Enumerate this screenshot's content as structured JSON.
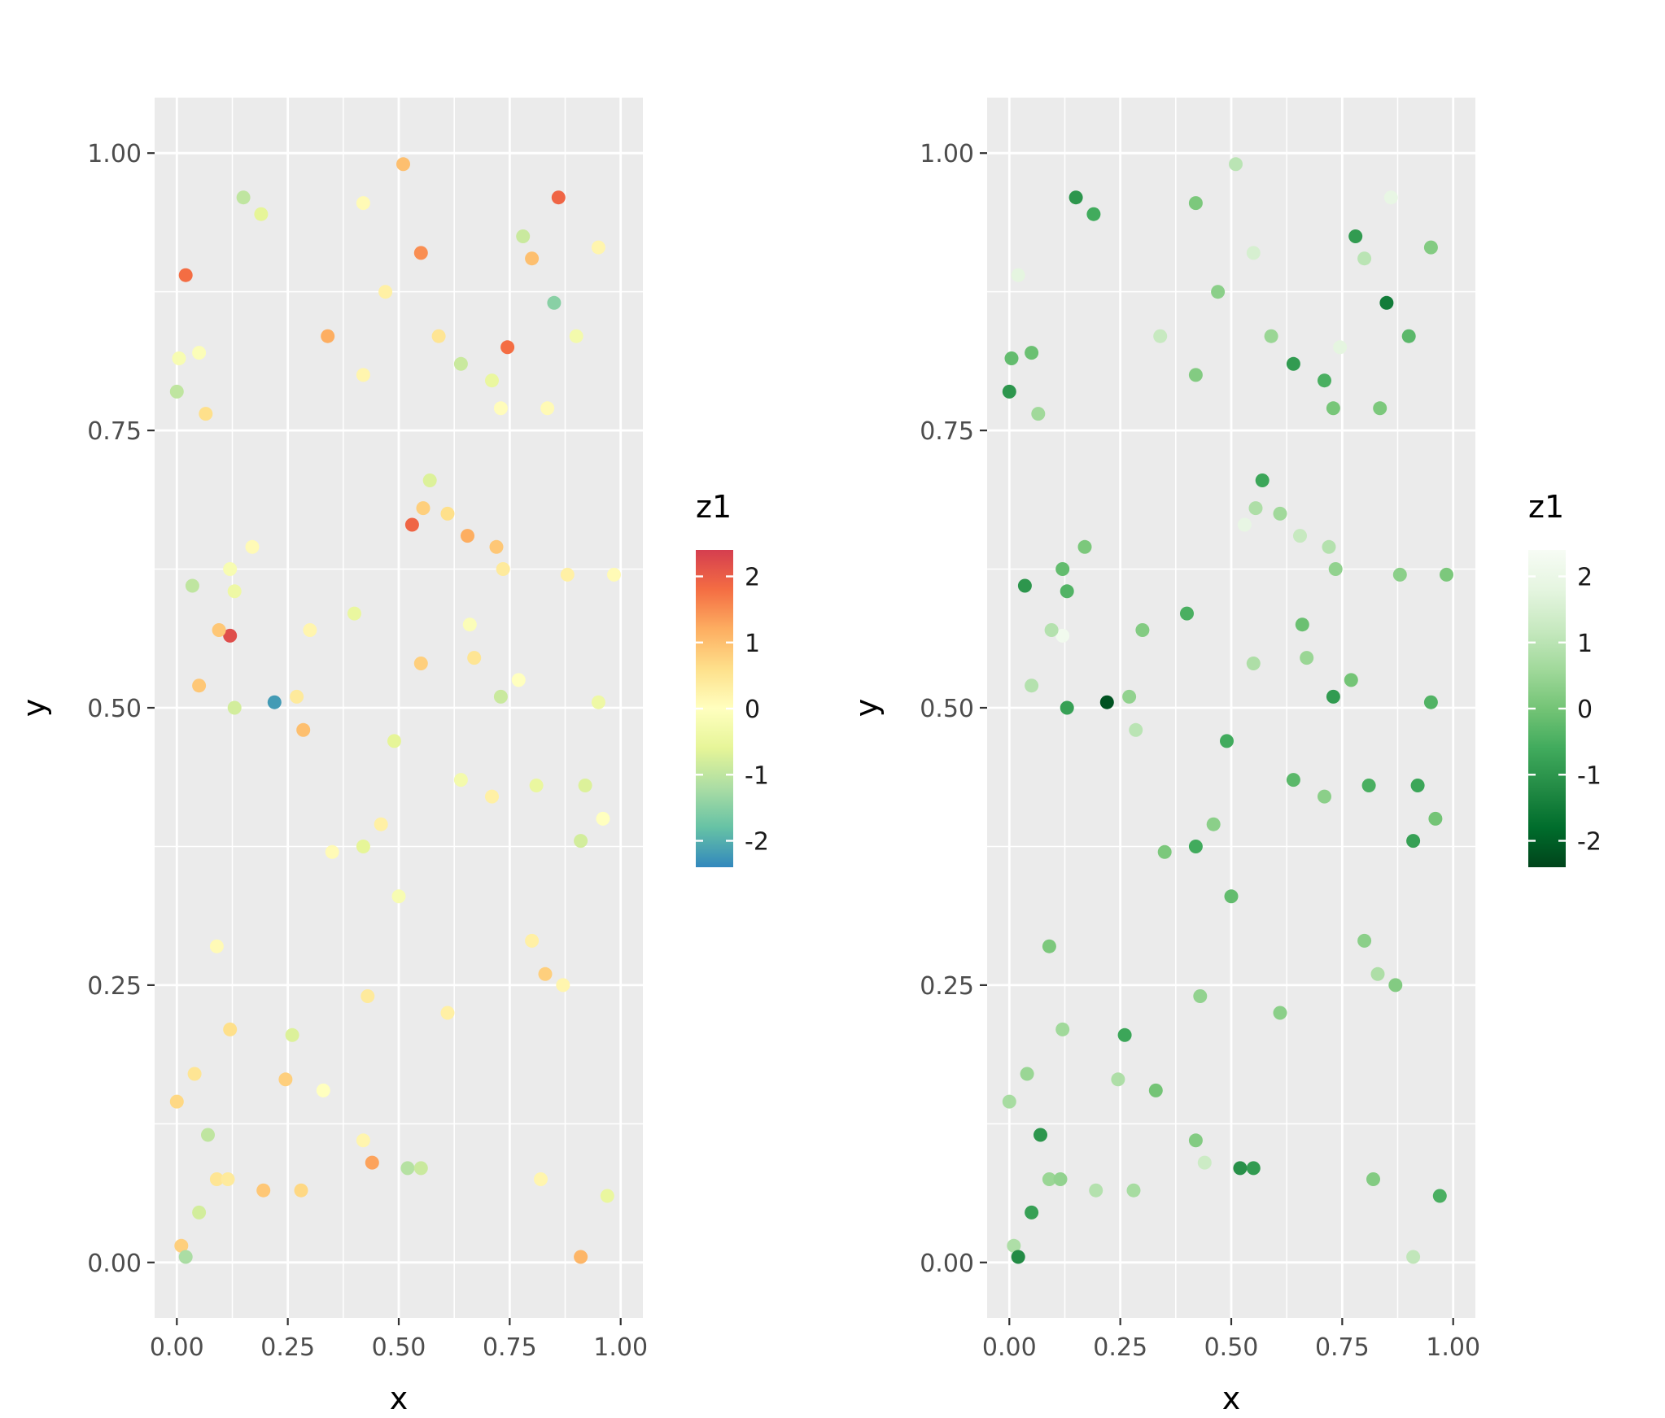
{
  "chart_data": {
    "type": "scatter",
    "title": "",
    "xlabel": "x",
    "ylabel": "y",
    "xlim": [
      0,
      1
    ],
    "ylim": [
      0,
      1
    ],
    "grid": "on",
    "panel_background": "#EBEBEB",
    "grid_color": "#FFFFFF",
    "axis_text_color": "#4D4D4D",
    "axis_title_color": "#000000",
    "tick_mark_color": "#333333",
    "x_ticks": [
      "0.00",
      "0.25",
      "0.50",
      "0.75",
      "1.00"
    ],
    "x_tick_values": [
      0,
      0.25,
      0.5,
      0.75,
      1
    ],
    "y_ticks": [
      "0.00",
      "0.25",
      "0.50",
      "0.75",
      "1.00"
    ],
    "y_tick_values": [
      0,
      0.25,
      0.5,
      0.75,
      1
    ],
    "minor_tick_values": [
      0.125,
      0.375,
      0.625,
      0.875
    ],
    "z_domain": [
      -2.4,
      2.4
    ],
    "legend": {
      "title": "z1",
      "tick_labels": [
        "2",
        "1",
        "0",
        "-1",
        "-2"
      ],
      "tick_values": [
        2,
        1,
        0,
        -1,
        -2
      ],
      "position": "right"
    },
    "panels": [
      {
        "name": "spectral",
        "description": "z1 on Spectral palette: high red, mid yellow, low blue",
        "palette_low_to_high": [
          "#3288BD",
          "#66C2A5",
          "#ABDDA4",
          "#E6F598",
          "#FFFFBF",
          "#FEE08B",
          "#FDAE61",
          "#F46D43",
          "#D53E4F"
        ]
      },
      {
        "name": "greens",
        "description": "z1 on Greens palette: high light, low dark green",
        "palette_low_to_high": [
          "#00441B",
          "#006D2C",
          "#238B45",
          "#41AB5D",
          "#74C476",
          "#A1D99B",
          "#C7E9C0",
          "#E5F5E0",
          "#F7FCF5"
        ]
      }
    ],
    "points": [
      [
        0.02,
        0.89,
        1.8
      ],
      [
        0.15,
        0.96,
        -1.0
      ],
      [
        0.19,
        0.945,
        -0.6
      ],
      [
        0.42,
        0.955,
        0.1
      ],
      [
        0.51,
        0.99,
        1.0
      ],
      [
        0.55,
        0.91,
        1.5
      ],
      [
        0.78,
        0.925,
        -0.9
      ],
      [
        0.8,
        0.905,
        1.0
      ],
      [
        0.86,
        0.96,
        1.9
      ],
      [
        0.95,
        0.915,
        0.2
      ],
      [
        0.47,
        0.875,
        0.3
      ],
      [
        0.85,
        0.865,
        -1.5
      ],
      [
        0.59,
        0.835,
        0.5
      ],
      [
        0.9,
        0.835,
        -0.3
      ],
      [
        0.005,
        0.815,
        -0.2
      ],
      [
        0.05,
        0.82,
        -0.1
      ],
      [
        0.0,
        0.785,
        -1.0
      ],
      [
        0.34,
        0.835,
        1.2
      ],
      [
        0.42,
        0.8,
        0.2
      ],
      [
        0.745,
        0.825,
        1.8
      ],
      [
        0.64,
        0.81,
        -0.9
      ],
      [
        0.71,
        0.795,
        -0.5
      ],
      [
        0.73,
        0.77,
        0.05
      ],
      [
        0.835,
        0.77,
        0.1
      ],
      [
        0.065,
        0.765,
        0.6
      ],
      [
        0.57,
        0.705,
        -0.7
      ],
      [
        0.555,
        0.68,
        0.8
      ],
      [
        0.61,
        0.675,
        0.6
      ],
      [
        0.53,
        0.665,
        1.9
      ],
      [
        0.655,
        0.655,
        1.2
      ],
      [
        0.72,
        0.645,
        0.9
      ],
      [
        0.735,
        0.625,
        0.4
      ],
      [
        0.17,
        0.645,
        0.1
      ],
      [
        0.035,
        0.61,
        -1.0
      ],
      [
        0.12,
        0.625,
        -0.2
      ],
      [
        0.13,
        0.605,
        -0.4
      ],
      [
        0.88,
        0.62,
        0.3
      ],
      [
        0.985,
        0.62,
        0.1
      ],
      [
        0.12,
        0.565,
        2.2
      ],
      [
        0.095,
        0.57,
        0.9
      ],
      [
        0.3,
        0.57,
        0.2
      ],
      [
        0.4,
        0.585,
        -0.5
      ],
      [
        0.66,
        0.575,
        -0.1
      ],
      [
        0.55,
        0.54,
        0.8
      ],
      [
        0.67,
        0.545,
        0.5
      ],
      [
        0.05,
        0.52,
        0.9
      ],
      [
        0.13,
        0.5,
        -0.8
      ],
      [
        0.22,
        0.505,
        -2.2
      ],
      [
        0.27,
        0.51,
        0.4
      ],
      [
        0.285,
        0.48,
        1.0
      ],
      [
        0.49,
        0.47,
        -0.6
      ],
      [
        0.73,
        0.51,
        -0.9
      ],
      [
        0.77,
        0.525,
        0.0
      ],
      [
        0.95,
        0.505,
        -0.4
      ],
      [
        0.64,
        0.435,
        -0.3
      ],
      [
        0.71,
        0.42,
        0.3
      ],
      [
        0.81,
        0.43,
        -0.5
      ],
      [
        0.92,
        0.43,
        -0.7
      ],
      [
        0.96,
        0.4,
        0.0
      ],
      [
        0.91,
        0.38,
        -0.8
      ],
      [
        0.46,
        0.395,
        0.3
      ],
      [
        0.42,
        0.375,
        -0.6
      ],
      [
        0.35,
        0.37,
        0.1
      ],
      [
        0.5,
        0.33,
        -0.2
      ],
      [
        0.09,
        0.285,
        0.1
      ],
      [
        0.8,
        0.29,
        0.3
      ],
      [
        0.83,
        0.26,
        0.8
      ],
      [
        0.87,
        0.25,
        0.2
      ],
      [
        0.43,
        0.24,
        0.4
      ],
      [
        0.61,
        0.225,
        0.3
      ],
      [
        0.12,
        0.21,
        0.6
      ],
      [
        0.26,
        0.205,
        -0.7
      ],
      [
        0.245,
        0.165,
        0.8
      ],
      [
        0.04,
        0.17,
        0.5
      ],
      [
        0.0,
        0.145,
        0.7
      ],
      [
        0.33,
        0.155,
        0.0
      ],
      [
        0.07,
        0.115,
        -1.0
      ],
      [
        0.42,
        0.11,
        0.2
      ],
      [
        0.44,
        0.09,
        1.3
      ],
      [
        0.52,
        0.085,
        -1.1
      ],
      [
        0.55,
        0.085,
        -0.9
      ],
      [
        0.09,
        0.075,
        0.5
      ],
      [
        0.115,
        0.075,
        0.4
      ],
      [
        0.195,
        0.065,
        0.9
      ],
      [
        0.28,
        0.065,
        0.7
      ],
      [
        0.05,
        0.045,
        -0.8
      ],
      [
        0.82,
        0.075,
        0.2
      ],
      [
        0.97,
        0.06,
        -0.5
      ],
      [
        0.01,
        0.015,
        0.8
      ],
      [
        0.02,
        0.005,
        -1.2
      ],
      [
        0.91,
        0.005,
        1.1
      ]
    ]
  }
}
